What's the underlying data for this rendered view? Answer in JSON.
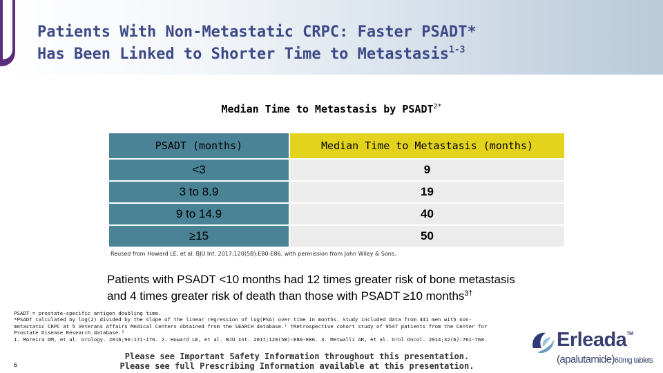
{
  "slide": {
    "title_line1": "Patients With Non-Metastatic CRPC: Faster PSADT*",
    "title_line2": "Has Been Linked to Shorter Time to Metastasis",
    "title_sup": "1-3",
    "table_caption": "Median Time to Metastasis by PSADT",
    "table_caption_sup": "2*"
  },
  "table": {
    "headers": [
      "PSADT (months)",
      "Median Time to Metastasis (months)"
    ],
    "rows": [
      {
        "psadt": "<3",
        "median": "9"
      },
      {
        "psadt": "3 to 8.9",
        "median": "19"
      },
      {
        "psadt": "9 to 14.9",
        "median": "40"
      },
      {
        "psadt": "≥15",
        "median": "50"
      }
    ]
  },
  "source_note": "Reused from Howard LE, et al. BJU Int. 2017;120(5B):E80-E86, with permission from John Wiley & Sons.",
  "key_finding": {
    "line1": "Patients with PSADT <10 months had 12 times greater risk of bone metastasis",
    "line2": "and 4 times greater risk of death than those with PSADT ≥10 months",
    "sup": "3†"
  },
  "footnotes": [
    "PSADT = prostate-specific antigen doubling time.",
    "*PSADT calculated by log(2) divided by the slope of the linear regression of log(PSA) over time in months. Study included data from 441 men with non-",
    "metastatic CRPC at 5 Veterans Affairs Medical Centers obtained from the SEARCH database.² †Retrospective cohort study of 9547 patients from the Center for",
    "Prostate Disease Research database.³",
    "1. Moreira DM, et al. Urology. 2016;96:171-176. 2. Howard LE, et al. BJU Int. 2017;120(5B):E80-E86. 3. Metwalli AR, et al. Urol Oncol. 2014;32(6):761-768."
  ],
  "page_number": "6",
  "safety": {
    "line1": "Please see Important Safety Information throughout this presentation.",
    "line2": "Please see full Prescribing Information available at this presentation."
  },
  "logo": {
    "name": "Erleada",
    "tm": "TM",
    "generic": "(apalutamide)",
    "dose": "60mg tablets",
    "icon": "erleada-swirl-icon"
  },
  "colors": {
    "title": "#3e4a87",
    "teal": "#4a8296",
    "yellow": "#e3d31c",
    "row_gray": "#ececec",
    "accent_purple": "#5b2e7d"
  }
}
